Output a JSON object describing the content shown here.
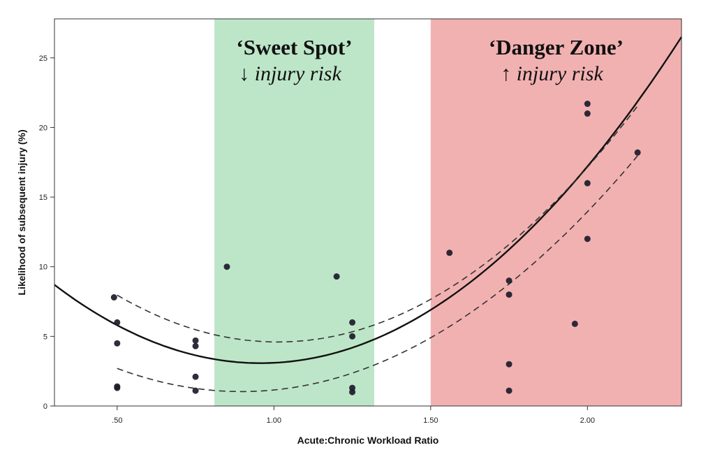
{
  "chart_data": {
    "type": "scatter",
    "title": "",
    "xlabel": "Acute:Chronic Workload Ratio",
    "ylabel": "Likelihood of subsequent injury (%)",
    "xlim": [
      0.3,
      2.3
    ],
    "ylim": [
      0,
      27.8
    ],
    "x_ticks": [
      0.5,
      1.0,
      1.5,
      2.0
    ],
    "x_tick_labels": [
      ".50",
      "1.00",
      "1.50",
      "2.00"
    ],
    "y_ticks": [
      0,
      5,
      10,
      15,
      20,
      25
    ],
    "y_tick_labels": [
      "0",
      "5",
      "10",
      "15",
      "20",
      "25"
    ],
    "grid": false,
    "zones": [
      {
        "label": "‘Sweet Spot’",
        "sublabel": "↓ injury risk",
        "x_range": [
          0.81,
          1.32
        ],
        "color": "#bde6c8"
      },
      {
        "label": "‘Danger Zone’",
        "sublabel": "↑ injury risk",
        "x_range": [
          1.5,
          2.3
        ],
        "color": "#f2b1b1"
      }
    ],
    "points": [
      {
        "x": 0.49,
        "y": 7.8
      },
      {
        "x": 0.5,
        "y": 6.0
      },
      {
        "x": 0.5,
        "y": 4.5
      },
      {
        "x": 0.5,
        "y": 1.4
      },
      {
        "x": 0.5,
        "y": 1.3
      },
      {
        "x": 0.75,
        "y": 4.7
      },
      {
        "x": 0.75,
        "y": 4.3
      },
      {
        "x": 0.75,
        "y": 2.1
      },
      {
        "x": 0.75,
        "y": 1.1
      },
      {
        "x": 0.85,
        "y": 10.0
      },
      {
        "x": 1.2,
        "y": 9.3
      },
      {
        "x": 1.25,
        "y": 6.0
      },
      {
        "x": 1.25,
        "y": 5.0
      },
      {
        "x": 1.25,
        "y": 1.3
      },
      {
        "x": 1.25,
        "y": 1.0
      },
      {
        "x": 1.56,
        "y": 11.0
      },
      {
        "x": 1.75,
        "y": 9.0
      },
      {
        "x": 1.75,
        "y": 8.0
      },
      {
        "x": 1.75,
        "y": 3.0
      },
      {
        "x": 1.75,
        "y": 1.1
      },
      {
        "x": 1.96,
        "y": 5.9
      },
      {
        "x": 2.0,
        "y": 21.7
      },
      {
        "x": 2.0,
        "y": 21.0
      },
      {
        "x": 2.0,
        "y": 16.0
      },
      {
        "x": 2.0,
        "y": 12.0
      },
      {
        "x": 2.16,
        "y": 18.2
      }
    ],
    "fit_curve": {
      "type": "quadratic",
      "a": 13.0,
      "b": -24.9,
      "c": 15.0
    },
    "confidence_band": {
      "upper": {
        "a": 12.85,
        "b": -26.0,
        "c": 17.75,
        "x_range": [
          0.5,
          2.16
        ]
      },
      "lower": {
        "a": 10.6,
        "b": -19.0,
        "c": 9.55,
        "x_range": [
          0.5,
          2.16
        ]
      }
    },
    "colors": {
      "point": "#1c1c2a",
      "fit_line": "#111111",
      "band_line": "#333333"
    }
  }
}
